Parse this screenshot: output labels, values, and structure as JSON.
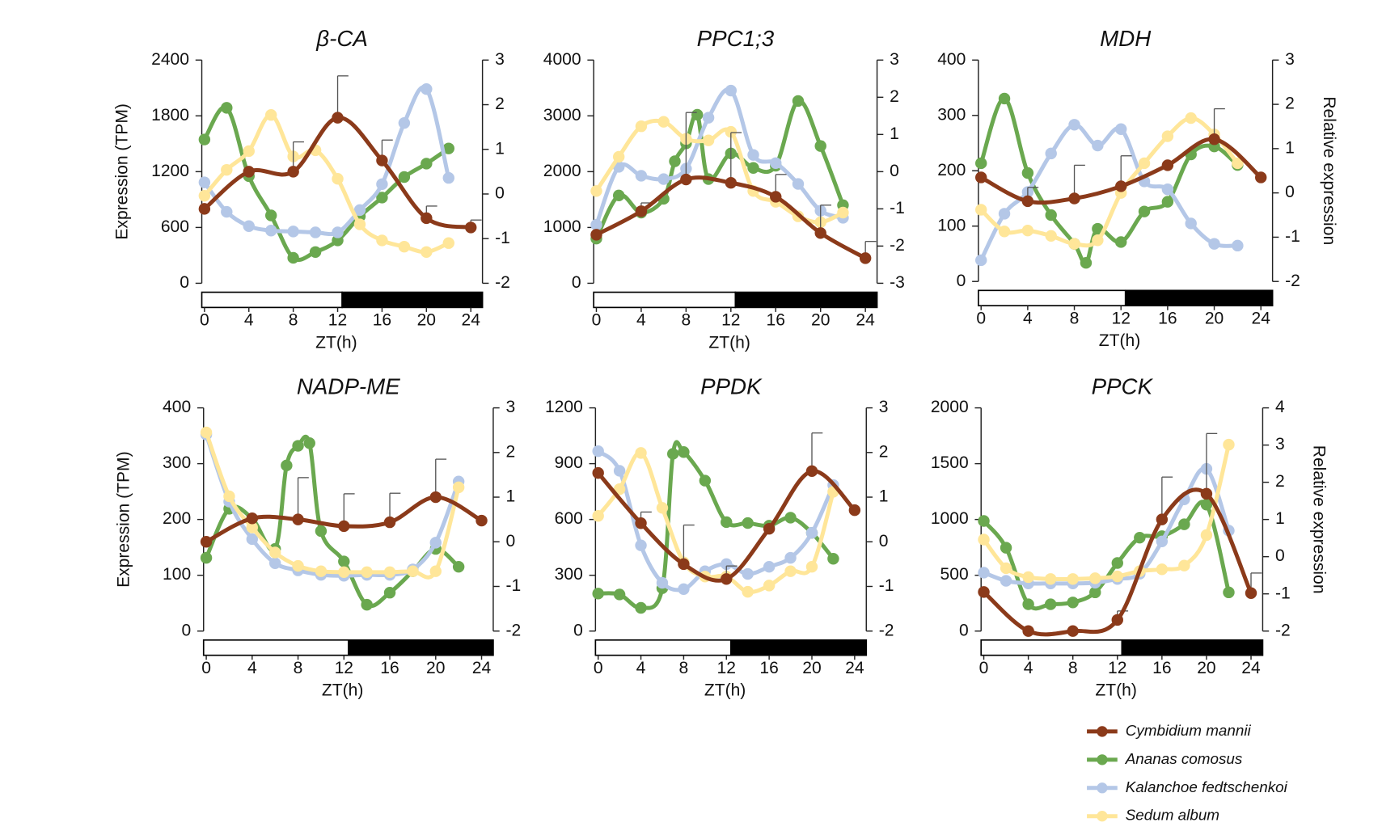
{
  "chart_data": [
    {
      "type": "line",
      "title": "β-CA",
      "xlabel": "ZT(h)",
      "ylabel": "Expression (TPM)",
      "xlim": [
        0,
        24
      ],
      "xticks": [
        0,
        4,
        8,
        12,
        16,
        20,
        24
      ],
      "ylim": [
        0,
        2400
      ],
      "yticks": [
        0,
        600,
        1200,
        1800,
        2400
      ],
      "y2lim": [
        -2,
        3
      ],
      "y2ticks": [
        -2,
        -1,
        0,
        1,
        2,
        3
      ],
      "series": [
        {
          "name": "Cymbidium mannii",
          "color": "#8b3a1a",
          "x": [
            0,
            4,
            8,
            12,
            16,
            20,
            24
          ],
          "values": [
            800,
            1200,
            1200,
            1780,
            1320,
            700,
            600
          ],
          "errors": [
            0,
            0,
            320,
            450,
            220,
            130,
            80
          ]
        },
        {
          "name": "Ananas comosus",
          "color": "#6aa84f",
          "axis": "y2",
          "x": [
            0,
            2,
            4,
            6,
            8,
            10,
            12,
            14,
            16,
            18,
            20,
            22
          ],
          "values": [
            1.22,
            1.93,
            0.4,
            -0.48,
            -1.43,
            -1.3,
            -1.04,
            -0.5,
            -0.08,
            0.38,
            0.68,
            1.02
          ]
        },
        {
          "name": "Kalanchoe fedtschenkoi",
          "color": "#b4c7e7",
          "axis": "y2",
          "x": [
            0,
            2,
            4,
            6,
            8,
            10,
            12,
            14,
            16,
            18,
            20,
            22
          ],
          "values": [
            0.26,
            -0.4,
            -0.72,
            -0.82,
            -0.84,
            -0.86,
            -0.86,
            -0.36,
            0.22,
            1.59,
            2.35,
            0.36
          ]
        },
        {
          "name": "Sedum album",
          "color": "#ffe699",
          "axis": "y2",
          "x": [
            0,
            2,
            4,
            6,
            8,
            10,
            12,
            14,
            16,
            18,
            20,
            22
          ],
          "values": [
            -0.04,
            0.54,
            0.96,
            1.77,
            0.84,
            0.98,
            0.34,
            -0.68,
            -1.04,
            -1.18,
            -1.3,
            -1.1
          ]
        }
      ]
    },
    {
      "type": "line",
      "title": "PPC1;3",
      "xlabel": "ZT(h)",
      "xlim": [
        0,
        24
      ],
      "xticks": [
        0,
        4,
        8,
        12,
        16,
        20,
        24
      ],
      "ylim": [
        0,
        4000
      ],
      "yticks": [
        0,
        1000,
        2000,
        3000,
        4000
      ],
      "y2lim": [
        -3,
        3
      ],
      "y2ticks": [
        -3,
        -2,
        -1,
        0,
        1,
        2,
        3
      ],
      "series": [
        {
          "name": "Cymbidium mannii",
          "color": "#8b3a1a",
          "x": [
            0,
            4,
            8,
            12,
            16,
            20,
            24
          ],
          "values": [
            870,
            1290,
            1860,
            1800,
            1550,
            900,
            450
          ],
          "errors": [
            0,
            150,
            1200,
            900,
            400,
            500,
            300
          ]
        },
        {
          "name": "Ananas comosus",
          "color": "#6aa84f",
          "axis": "y2",
          "x": [
            0,
            2,
            4,
            6,
            7,
            8,
            9,
            10,
            12,
            14,
            16,
            18,
            20,
            22
          ],
          "values": [
            -1.8,
            -0.64,
            -1.1,
            -0.73,
            0.28,
            0.76,
            1.53,
            -0.2,
            0.49,
            0.1,
            0.16,
            1.9,
            0.69,
            -0.9
          ]
        },
        {
          "name": "Kalanchoe fedtschenkoi",
          "color": "#b4c7e7",
          "axis": "y2",
          "x": [
            0,
            2,
            4,
            6,
            8,
            10,
            12,
            14,
            16,
            18,
            20,
            22
          ],
          "values": [
            -1.43,
            0.13,
            -0.11,
            -0.2,
            0.08,
            1.45,
            2.18,
            0.45,
            0.23,
            -0.33,
            -1.05,
            -1.24
          ]
        },
        {
          "name": "Sedum album",
          "color": "#ffe699",
          "axis": "y2",
          "x": [
            0,
            2,
            4,
            6,
            8,
            10,
            12,
            14,
            16,
            18,
            20,
            22
          ],
          "values": [
            -0.52,
            0.4,
            1.22,
            1.34,
            0.88,
            0.84,
            1.07,
            -0.52,
            -0.81,
            -1.2,
            -1.36,
            -1.1
          ]
        }
      ]
    },
    {
      "type": "line",
      "title": "MDH",
      "xlabel": "ZT(h)",
      "y2label": "Relative expression",
      "xlim": [
        0,
        24
      ],
      "xticks": [
        0,
        4,
        8,
        12,
        16,
        20,
        24
      ],
      "ylim": [
        0,
        400
      ],
      "yticks": [
        0,
        100,
        200,
        300,
        400
      ],
      "y2lim": [
        -2,
        3
      ],
      "y2ticks": [
        -2,
        -1,
        0,
        1,
        2,
        3
      ],
      "series": [
        {
          "name": "Cymbidium mannii",
          "color": "#8b3a1a",
          "x": [
            0,
            4,
            8,
            12,
            16,
            20,
            24
          ],
          "values": [
            188,
            145,
            150,
            172,
            210,
            257,
            188
          ],
          "errors": [
            0,
            25,
            60,
            55,
            0,
            55,
            0
          ]
        },
        {
          "name": "Ananas comosus",
          "color": "#6aa84f",
          "axis": "y2",
          "x": [
            0,
            2,
            4,
            6,
            8,
            9,
            10,
            12,
            14,
            16,
            18,
            20,
            22
          ],
          "values": [
            0.67,
            2.13,
            0.45,
            -0.5,
            -1.15,
            -1.58,
            -0.81,
            -1.11,
            -0.42,
            -0.2,
            0.87,
            1.05,
            0.63
          ]
        },
        {
          "name": "Kalanchoe fedtschenkoi",
          "color": "#b4c7e7",
          "axis": "y2",
          "x": [
            0,
            2,
            4,
            6,
            8,
            10,
            12,
            14,
            16,
            18,
            20,
            22
          ],
          "values": [
            -1.52,
            -0.47,
            0.02,
            0.89,
            1.54,
            1.07,
            1.44,
            0.26,
            0.08,
            -0.69,
            -1.15,
            -1.19
          ]
        },
        {
          "name": "Sedum album",
          "color": "#ffe699",
          "axis": "y2",
          "x": [
            0,
            2,
            4,
            6,
            8,
            10,
            12,
            14,
            16,
            18,
            20,
            22
          ],
          "values": [
            -0.38,
            -0.87,
            -0.85,
            -0.97,
            -1.15,
            -1.07,
            0,
            0.67,
            1.28,
            1.69,
            1.32,
            0.67
          ]
        }
      ]
    },
    {
      "type": "line",
      "title": "NADP-ME",
      "xlabel": "ZT(h)",
      "ylabel": "Expression (TPM)",
      "xlim": [
        0,
        24
      ],
      "xticks": [
        0,
        4,
        8,
        12,
        16,
        20,
        24
      ],
      "ylim": [
        0,
        400
      ],
      "yticks": [
        0,
        100,
        200,
        300,
        400
      ],
      "y2lim": [
        -2,
        3
      ],
      "y2ticks": [
        -2,
        -1,
        0,
        1,
        2,
        3
      ],
      "series": [
        {
          "name": "Cymbidium mannii",
          "color": "#8b3a1a",
          "x": [
            0,
            4,
            8,
            12,
            16,
            20,
            24
          ],
          "values": [
            160,
            202,
            200,
            188,
            195,
            240,
            198
          ],
          "errors": [
            0,
            0,
            75,
            58,
            52,
            68,
            0
          ]
        },
        {
          "name": "Ananas comosus",
          "color": "#6aa84f",
          "axis": "y2",
          "x": [
            0,
            2,
            4,
            6,
            7,
            8,
            9,
            10,
            12,
            14,
            16,
            18,
            20,
            22
          ],
          "values": [
            -0.36,
            0.74,
            0.52,
            -0.16,
            1.71,
            2.15,
            2.21,
            0.24,
            -0.44,
            -1.41,
            -1.14,
            -0.66,
            -0.16,
            -0.56
          ]
        },
        {
          "name": "Kalanchoe fedtschenkoi",
          "color": "#b4c7e7",
          "axis": "y2",
          "x": [
            0,
            2,
            4,
            6,
            8,
            10,
            12,
            14,
            16,
            18,
            20,
            22
          ],
          "values": [
            2.4,
            0.9,
            0.06,
            -0.48,
            -0.64,
            -0.74,
            -0.76,
            -0.74,
            -0.74,
            -0.62,
            -0.02,
            1.35
          ]
        },
        {
          "name": "Sedum album",
          "color": "#ffe699",
          "axis": "y2",
          "x": [
            0,
            2,
            4,
            6,
            8,
            10,
            12,
            14,
            16,
            18,
            20,
            22
          ],
          "values": [
            2.45,
            1.02,
            0.32,
            -0.24,
            -0.54,
            -0.66,
            -0.68,
            -0.68,
            -0.68,
            -0.66,
            -0.66,
            1.22
          ]
        }
      ]
    },
    {
      "type": "line",
      "title": "PPDK",
      "xlabel": "ZT(h)",
      "xlim": [
        0,
        24
      ],
      "xticks": [
        0,
        4,
        8,
        12,
        16,
        20,
        24
      ],
      "ylim": [
        0,
        1200
      ],
      "yticks": [
        0,
        300,
        600,
        900,
        1200
      ],
      "y2lim": [
        -2,
        3
      ],
      "y2ticks": [
        -2,
        -1,
        0,
        1,
        2,
        3
      ],
      "series": [
        {
          "name": "Cymbidium mannii",
          "color": "#8b3a1a",
          "x": [
            0,
            4,
            8,
            12,
            16,
            20,
            24
          ],
          "values": [
            850,
            580,
            360,
            280,
            550,
            860,
            650
          ],
          "errors": [
            0,
            60,
            210,
            70,
            0,
            205,
            0
          ]
        },
        {
          "name": "Ananas comosus",
          "color": "#6aa84f",
          "axis": "y2",
          "x": [
            0,
            2,
            4,
            6,
            7,
            8,
            10,
            12,
            14,
            16,
            18,
            20,
            22
          ],
          "values": [
            -1.16,
            -1.18,
            -1.48,
            -1.04,
            1.97,
            2.01,
            1.37,
            0.44,
            0.42,
            0.36,
            0.54,
            0.2,
            -0.38
          ]
        },
        {
          "name": "Kalanchoe fedtschenkoi",
          "color": "#b4c7e7",
          "axis": "y2",
          "x": [
            0,
            2,
            4,
            6,
            8,
            10,
            12,
            14,
            16,
            18,
            20,
            22
          ],
          "values": [
            2.03,
            1.59,
            -0.08,
            -0.92,
            -1.06,
            -0.66,
            -0.5,
            -0.72,
            -0.56,
            -0.36,
            0.2,
            1.27
          ]
        },
        {
          "name": "Sedum album",
          "color": "#ffe699",
          "axis": "y2",
          "x": [
            0,
            2,
            4,
            6,
            8,
            10,
            12,
            14,
            16,
            18,
            20,
            22
          ],
          "values": [
            0.58,
            1.18,
            1.99,
            0.76,
            -0.46,
            -0.78,
            -0.78,
            -1.12,
            -0.98,
            -0.66,
            -0.56,
            1.12
          ]
        }
      ]
    },
    {
      "type": "line",
      "title": "PPCK",
      "xlabel": "ZT(h)",
      "y2label": "Relative expression",
      "xlim": [
        0,
        24
      ],
      "xticks": [
        0,
        4,
        8,
        12,
        16,
        20,
        24
      ],
      "ylim": [
        0,
        2000
      ],
      "yticks": [
        0,
        500,
        1000,
        1500,
        2000
      ],
      "y2lim": [
        -2,
        4
      ],
      "y2ticks": [
        -2,
        -1,
        0,
        1,
        2,
        3,
        4
      ],
      "series": [
        {
          "name": "Cymbidium mannii",
          "color": "#8b3a1a",
          "x": [
            0,
            4,
            8,
            12,
            16,
            20,
            24
          ],
          "values": [
            350,
            0,
            0,
            100,
            1000,
            1230,
            340
          ],
          "errors": [
            0,
            0,
            0,
            80,
            380,
            540,
            180
          ]
        },
        {
          "name": "Ananas comosus",
          "color": "#6aa84f",
          "axis": "y2",
          "x": [
            0,
            2,
            4,
            6,
            8,
            10,
            12,
            14,
            16,
            18,
            20,
            22
          ],
          "values": [
            0.96,
            0.24,
            -1.28,
            -1.28,
            -1.23,
            -0.96,
            -0.17,
            0.51,
            0.55,
            0.87,
            1.4,
            -0.96
          ]
        },
        {
          "name": "Kalanchoe fedtschenkoi",
          "color": "#b4c7e7",
          "axis": "y2",
          "x": [
            0,
            2,
            4,
            6,
            8,
            10,
            12,
            14,
            16,
            18,
            20,
            22
          ],
          "values": [
            -0.43,
            -0.65,
            -0.72,
            -0.72,
            -0.72,
            -0.7,
            -0.6,
            -0.46,
            0.41,
            1.54,
            2.36,
            0.7
          ]
        },
        {
          "name": "Sedum album",
          "color": "#ffe699",
          "axis": "y2",
          "x": [
            0,
            2,
            4,
            6,
            8,
            10,
            12,
            14,
            16,
            18,
            20,
            22
          ],
          "values": [
            0.46,
            -0.31,
            -0.55,
            -0.6,
            -0.6,
            -0.58,
            -0.53,
            -0.39,
            -0.34,
            -0.24,
            0.58,
            3.01
          ]
        }
      ]
    }
  ]
}
